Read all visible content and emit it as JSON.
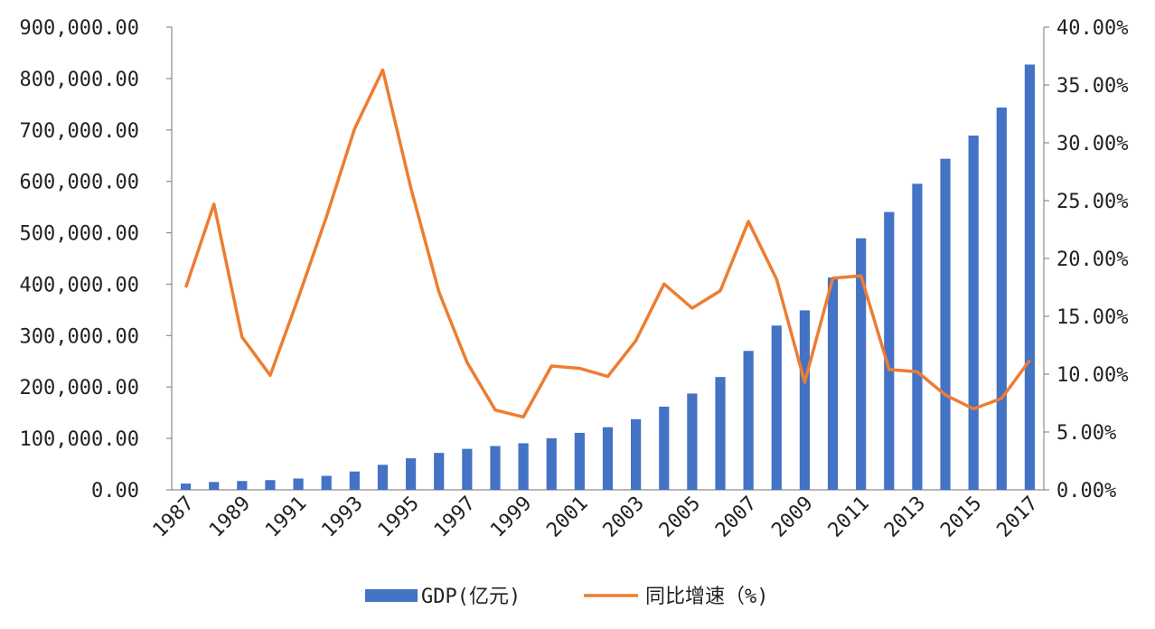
{
  "chart_data": {
    "type": "bar",
    "categories": [
      "1987",
      "1988",
      "1989",
      "1990",
      "1991",
      "1992",
      "1993",
      "1994",
      "1995",
      "1996",
      "1997",
      "1998",
      "1999",
      "2000",
      "2001",
      "2002",
      "2003",
      "2004",
      "2005",
      "2006",
      "2007",
      "2008",
      "2009",
      "2010",
      "2011",
      "2012",
      "2013",
      "2014",
      "2015",
      "2016",
      "2017"
    ],
    "x_tick_labels": [
      "1987",
      "1989",
      "1991",
      "1993",
      "1995",
      "1997",
      "1999",
      "2001",
      "2003",
      "2005",
      "2007",
      "2009",
      "2011",
      "2013",
      "2015",
      "2017"
    ],
    "series": [
      {
        "name": "GDP(亿元)",
        "type": "bar",
        "axis": "left",
        "color": "#4472C4",
        "values": [
          12175,
          15180,
          17180,
          18873,
          22006,
          27195,
          35673,
          48638,
          61340,
          71814,
          79715,
          85196,
          90564,
          100280,
          110863,
          121717,
          137422,
          161840,
          187319,
          219438,
          270232,
          319516,
          349081,
          413030,
          489301,
          540367,
          595244,
          643974,
          689052,
          743586,
          827122
        ]
      },
      {
        "name": "同比增速（%)",
        "type": "line",
        "axis": "right",
        "color": "#ED7D31",
        "values": [
          17.5,
          24.7,
          13.2,
          9.9,
          16.6,
          23.6,
          31.2,
          36.3,
          26.1,
          17.1,
          11.0,
          6.9,
          6.3,
          10.7,
          10.5,
          9.8,
          12.9,
          17.8,
          15.7,
          17.2,
          23.2,
          18.2,
          9.3,
          18.3,
          18.5,
          10.4,
          10.2,
          8.2,
          7.0,
          7.9,
          11.2
        ]
      }
    ],
    "y_left": {
      "min": 0,
      "max": 900000,
      "step": 100000,
      "tick_labels": [
        "0.00",
        "100,000.00",
        "200,000.00",
        "300,000.00",
        "400,000.00",
        "500,000.00",
        "600,000.00",
        "700,000.00",
        "800,000.00",
        "900,000.00"
      ]
    },
    "y_right": {
      "min": 0,
      "max": 40,
      "step": 5,
      "tick_labels": [
        "0.00%",
        "5.00%",
        "10.00%",
        "15.00%",
        "20.00%",
        "25.00%",
        "30.00%",
        "35.00%",
        "40.00%"
      ]
    },
    "title": "",
    "xlabel": "",
    "ylabel": "",
    "grid": false,
    "legend_position": "bottom"
  }
}
